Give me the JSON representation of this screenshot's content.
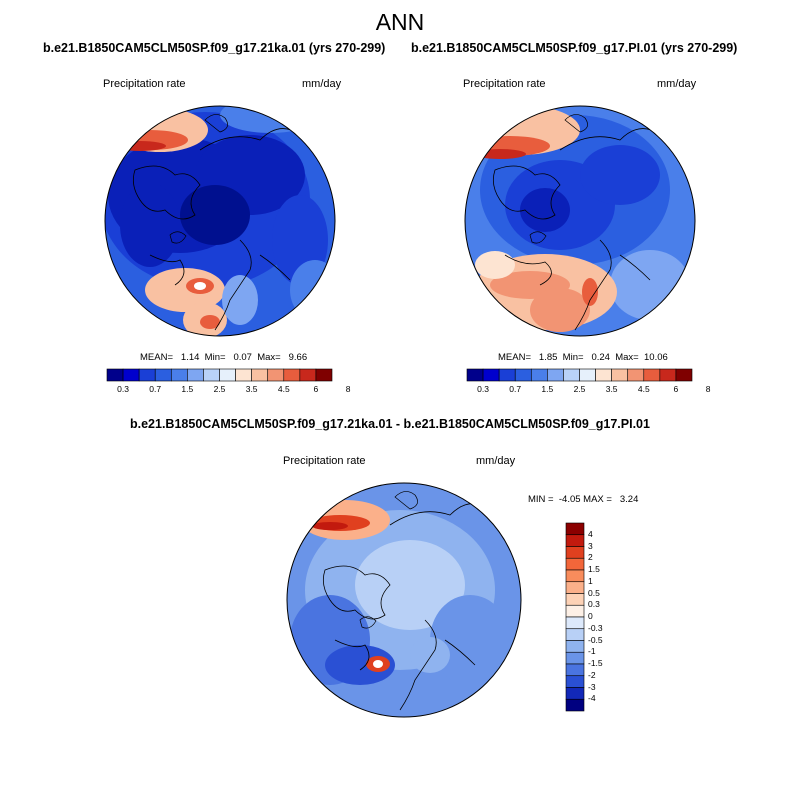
{
  "figure": {
    "title": "ANN"
  },
  "panels": [
    {
      "title": "b.e21.B1850CAM5CLM50SP.f09_g17.21ka.01 (yrs 270-299)",
      "variable": "Precipitation rate",
      "units": "mm/day",
      "stats": "MEAN=   1.14  Min=   0.07  Max=   9.66",
      "colorbar_ticks": [
        "0.3",
        "0.7",
        "1.5",
        "2.5",
        "3.5",
        "4.5",
        "6",
        "8"
      ],
      "colorbar_colors": [
        "#00008b",
        "#0000cd",
        "#1a3fd6",
        "#2b5fe0",
        "#4a7fea",
        "#7ea6f2",
        "#b9d2f8",
        "#e6f0fb",
        "#fde4d2",
        "#f9c1a2",
        "#f29473",
        "#e85d3d",
        "#c8281c",
        "#7f0000"
      ]
    },
    {
      "title": "b.e21.B1850CAM5CLM50SP.f09_g17.PI.01 (yrs 270-299)",
      "variable": "Precipitation rate",
      "units": "mm/day",
      "stats": "MEAN=   1.85  Min=   0.24  Max=  10.06",
      "colorbar_ticks": [
        "0.3",
        "0.7",
        "1.5",
        "2.5",
        "3.5",
        "4.5",
        "6",
        "8"
      ],
      "colorbar_colors": [
        "#00008b",
        "#0000cd",
        "#1a3fd6",
        "#2b5fe0",
        "#4a7fea",
        "#7ea6f2",
        "#b9d2f8",
        "#e6f0fb",
        "#fde4d2",
        "#f9c1a2",
        "#f29473",
        "#e85d3d",
        "#c8281c",
        "#7f0000"
      ]
    },
    {
      "title": "b.e21.B1850CAM5CLM50SP.f09_g17.21ka.01 - b.e21.B1850CAM5CLM50SP.f09_g17.PI.01",
      "variable": "Precipitation rate",
      "units": "mm/day",
      "stats": "MIN =  -4.05 MAX =   3.24",
      "colorbar_ticks": [
        "4",
        "3",
        "2",
        "1.5",
        "1",
        "0.5",
        "0.3",
        "0",
        "-0.3",
        "-0.5",
        "-1",
        "-1.5",
        "-2",
        "-3",
        "-4"
      ],
      "colorbar_colors": [
        "#8b0000",
        "#c21a0e",
        "#e0401f",
        "#f2663a",
        "#f88c5c",
        "#fbb08a",
        "#fdd2b6",
        "#fdf0e6",
        "#dde9fb",
        "#b8d0f6",
        "#8fb3ef",
        "#6a94e8",
        "#4a74e0",
        "#2a50d4",
        "#1228b8",
        "#000080"
      ]
    }
  ]
}
